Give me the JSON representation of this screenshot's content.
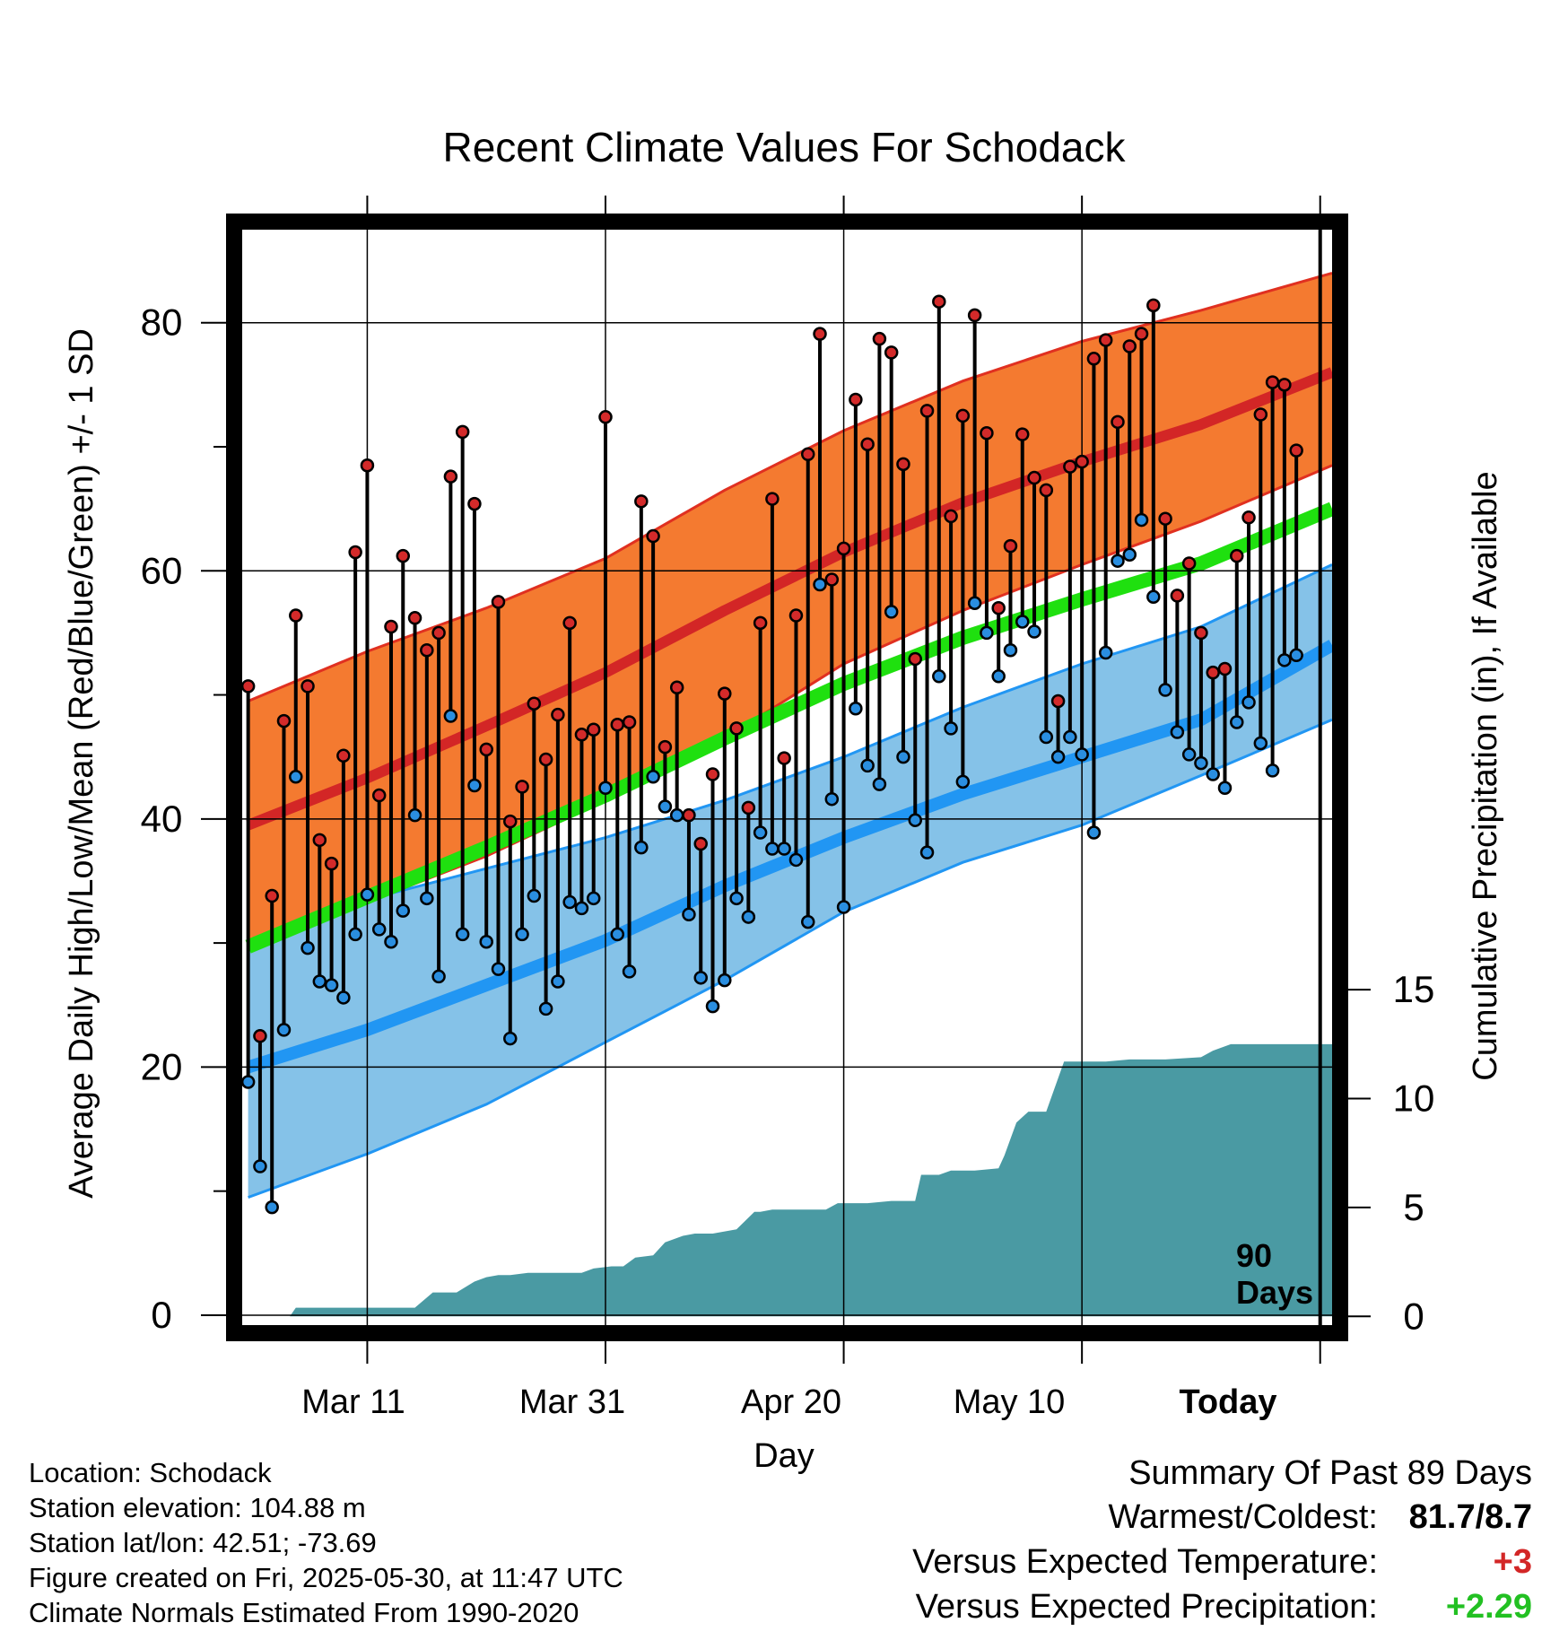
{
  "chart_data": {
    "type": "line",
    "title": "Recent Climate Values For Schodack",
    "xlabel": "Day",
    "ylabel": "Average Daily High/Low/Mean (Red/Blue/Green) +/- 1 SD",
    "y2label": "Cumulative Precipitation (in), If Available",
    "x_tick_labels": [
      "Mar 11",
      "Mar 31",
      "Apr 20",
      "May 10",
      "Today"
    ],
    "x_tick_days": [
      10,
      30,
      50,
      70,
      90
    ],
    "y_ticks": [
      "0",
      "20",
      "40",
      "60",
      "80"
    ],
    "y_tick_values": [
      0,
      20,
      40,
      60,
      80
    ],
    "ylim": [
      -0.8,
      87.5
    ],
    "y2_ticks": [
      "0",
      "5",
      "10",
      "15"
    ],
    "y2_tick_values": [
      0,
      5,
      10,
      15
    ],
    "y2lim": [
      -0.4,
      49.9
    ],
    "xlim": [
      -0.5,
      91
    ],
    "today_day": 90,
    "today_annotation": [
      "90",
      "Days"
    ],
    "grid": true,
    "colors": {
      "high_band": "#f47a30",
      "high_band_edge": "#e03020",
      "high_mean": "#d32626",
      "low_band": "#85c2e8",
      "low_band_edge": "#2196f3",
      "low_mean": "#2196f3",
      "mean_line": "#1fe00f",
      "precip": "#4a9aa3",
      "high_dot": "#d32a2a",
      "low_dot": "#2a8ee0"
    },
    "normals": {
      "days": [
        0,
        10,
        20,
        30,
        40,
        50,
        60,
        70,
        80,
        91
      ],
      "high_mean": [
        39.5,
        43.3,
        47.5,
        51.8,
        56.8,
        61.5,
        65.5,
        68.8,
        71.8,
        76.0
      ],
      "high_upper": [
        49.5,
        53.5,
        57.0,
        61.0,
        66.5,
        71.3,
        75.3,
        78.5,
        81.0,
        84.0
      ],
      "high_lower": [
        30.0,
        33.3,
        37.0,
        41.5,
        46.5,
        52.5,
        56.8,
        60.5,
        64.0,
        68.5
      ],
      "mean_normal": [
        29.7,
        33.7,
        37.7,
        41.9,
        46.5,
        50.9,
        54.6,
        57.7,
        60.6,
        65.0
      ],
      "low_mean": [
        20.0,
        23.0,
        26.6,
        30.2,
        34.6,
        38.5,
        42.0,
        45.0,
        48.0,
        54.0
      ],
      "low_upper": [
        30.0,
        33.5,
        36.0,
        38.5,
        41.5,
        45.0,
        49.0,
        52.5,
        55.5,
        60.5
      ],
      "low_lower": [
        9.5,
        13.0,
        17.0,
        22.0,
        27.0,
        32.5,
        36.5,
        39.5,
        43.5,
        48.0
      ]
    },
    "daily_high": [
      50.7,
      22.5,
      33.8,
      47.9,
      56.4,
      50.7,
      38.3,
      36.4,
      45.1,
      61.5,
      68.5,
      41.9,
      55.5,
      61.2,
      56.2,
      53.6,
      55.0,
      67.6,
      71.2,
      65.4,
      45.6,
      57.5,
      39.8,
      42.6,
      49.3,
      44.8,
      48.4,
      55.8,
      46.8,
      47.2,
      72.4,
      47.6,
      47.8,
      65.6,
      62.8,
      45.8,
      50.6,
      40.3,
      38.0,
      43.6,
      50.1,
      47.3,
      40.9,
      55.8,
      65.8,
      44.9,
      56.4,
      69.4,
      79.1,
      59.3,
      61.8,
      73.8,
      70.2,
      78.7,
      77.6,
      68.6,
      52.9,
      72.9,
      81.7,
      64.4,
      72.5,
      80.6,
      71.1,
      57.0,
      62.0,
      71.0,
      67.5,
      66.5,
      49.5,
      68.4,
      68.8,
      77.1,
      78.6,
      72.0,
      78.1,
      79.1,
      81.4,
      64.2,
      58.0,
      60.6,
      55.0,
      51.8,
      52.1,
      61.2,
      64.3,
      72.6,
      75.2,
      75.0,
      69.7
    ],
    "daily_low": [
      18.8,
      12.0,
      8.7,
      23.0,
      43.4,
      29.6,
      26.9,
      26.6,
      25.6,
      30.7,
      33.9,
      31.1,
      30.1,
      32.6,
      40.3,
      33.6,
      27.3,
      48.3,
      30.7,
      42.7,
      30.1,
      27.9,
      22.3,
      30.7,
      33.8,
      24.7,
      26.9,
      33.3,
      32.8,
      33.6,
      42.5,
      30.7,
      27.7,
      37.7,
      43.4,
      41.0,
      40.3,
      32.3,
      27.2,
      24.9,
      27.0,
      33.6,
      32.1,
      38.9,
      37.6,
      37.6,
      36.7,
      31.7,
      58.9,
      41.6,
      32.9,
      48.9,
      44.3,
      42.8,
      56.7,
      45.0,
      39.9,
      37.3,
      51.5,
      47.3,
      43.0,
      57.4,
      55.0,
      51.5,
      53.6,
      55.9,
      55.1,
      46.6,
      45.0,
      46.6,
      45.2,
      38.9,
      53.4,
      60.8,
      61.3,
      64.1,
      57.9,
      50.4,
      47.0,
      45.2,
      44.5,
      43.6,
      42.5,
      47.8,
      49.4,
      46.1,
      43.9,
      52.8,
      53.2
    ],
    "precip_cumulative": {
      "days": [
        0,
        3.5,
        4.0,
        14.0,
        15.5,
        17.5,
        19.0,
        20.0,
        21.0,
        22.0,
        23.5,
        26.0,
        28.0,
        29.0,
        30.5,
        31.5,
        32.5,
        34.0,
        35.0,
        36.5,
        37.5,
        39.0,
        41.0,
        42.5,
        43.0,
        44.0,
        45.0,
        47.0,
        48.5,
        49.5,
        50.0,
        51.0,
        52.0,
        54.0,
        56.0,
        56.5,
        58.0,
        59.0,
        61.0,
        63.0,
        63.5,
        64.5,
        65.5,
        67.0,
        68.5,
        70.0,
        72.0,
        74.0,
        77.0,
        80.0,
        81.0,
        82.5,
        83.0,
        91.0
      ],
      "values": [
        0,
        0,
        0.4,
        0.4,
        1.1,
        1.1,
        1.6,
        1.8,
        1.9,
        1.9,
        2.0,
        2.0,
        2.0,
        2.2,
        2.3,
        2.3,
        2.7,
        2.8,
        3.4,
        3.7,
        3.8,
        3.8,
        4.0,
        4.8,
        4.8,
        4.9,
        4.9,
        4.9,
        4.9,
        5.2,
        5.2,
        5.2,
        5.2,
        5.3,
        5.3,
        6.5,
        6.5,
        6.7,
        6.7,
        6.8,
        7.4,
        8.9,
        9.4,
        9.4,
        11.7,
        11.7,
        11.7,
        11.8,
        11.8,
        11.9,
        12.2,
        12.5,
        12.5,
        12.5
      ]
    }
  },
  "info": {
    "location": "Location: Schodack",
    "elevation": "Station elevation: 104.88 m",
    "latlon": "Station lat/lon: 42.51; -73.69",
    "created": "Figure created on Fri, 2025-05-30, at 11:47 UTC",
    "normals": "Climate Normals Estimated From 1990-2020"
  },
  "summary": {
    "title": "Summary Of Past 89 Days",
    "warmest_label": "Warmest/Coldest:",
    "warmest_value": "81.7/8.7",
    "temp_label": "Versus Expected Temperature:",
    "temp_value": "+3",
    "temp_color": "#d32626",
    "precip_label": "Versus Expected Precipitation:",
    "precip_value": "+2.29",
    "precip_color": "#22c022"
  }
}
